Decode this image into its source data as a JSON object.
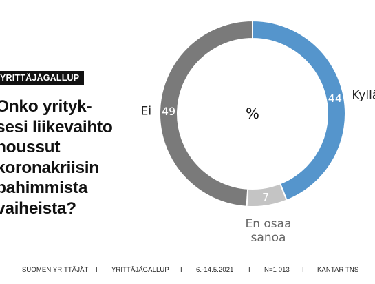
{
  "header": {
    "badge": "YRITTÄJÄGALLUP",
    "question_lines": [
      "Onko yrityk-",
      "sesi liikevaihto",
      "noussut",
      "koronakriisin",
      "pahimmista",
      "vaiheista?"
    ]
  },
  "chart_data": {
    "type": "pie",
    "style": "donut",
    "center_label": "%",
    "slices": [
      {
        "label": "Kyllä",
        "value": 44,
        "color": "#5595cc"
      },
      {
        "label": "En osaa sanoa",
        "label_lines": [
          "En osaa",
          "sanoa"
        ],
        "value": 7,
        "color": "#c4c4c4"
      },
      {
        "label": "Ei",
        "value": 49,
        "color": "#7a7a7a"
      }
    ],
    "legend": "labels-outside"
  },
  "footer": {
    "items": [
      "SUOMEN YRITTÄJÄT",
      "I",
      "YRITTÄJÄGALLUP",
      "I",
      "6.-14.5.2021",
      "I",
      "N=1 013",
      "I",
      "KANTAR TNS"
    ]
  }
}
